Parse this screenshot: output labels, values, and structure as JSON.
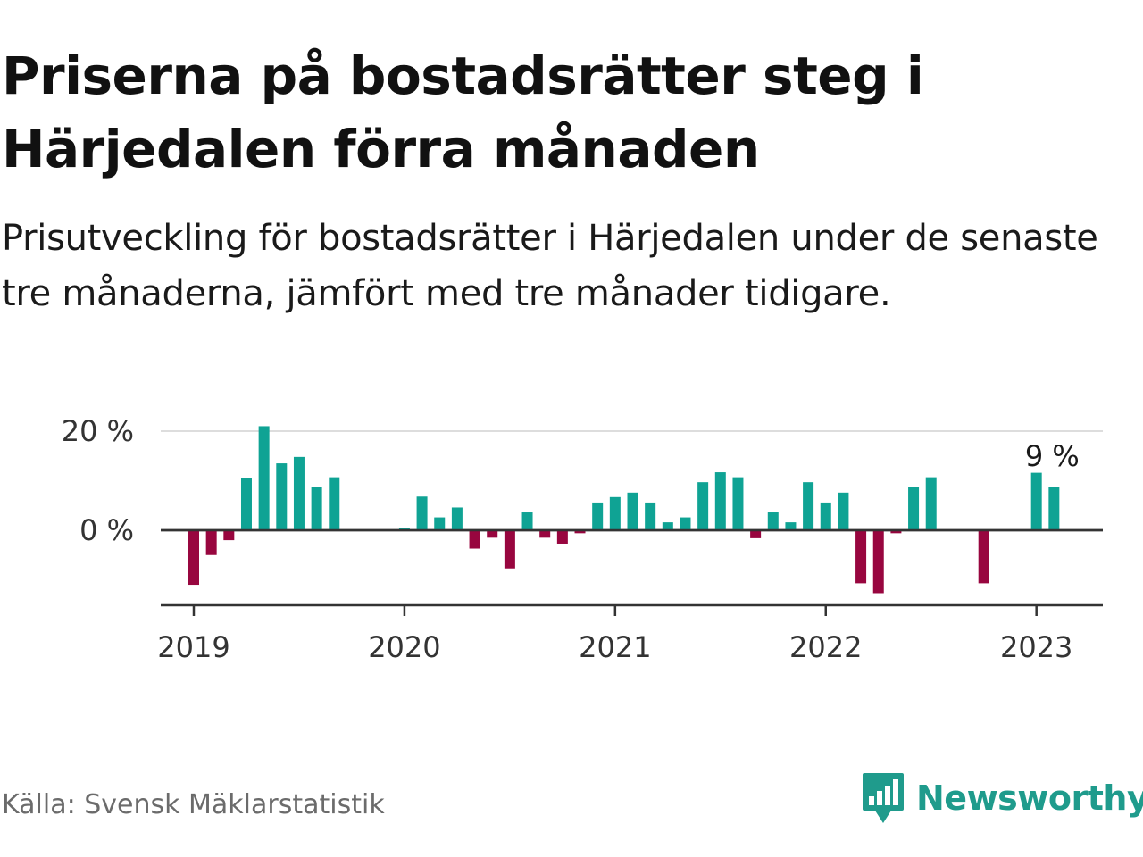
{
  "title": "Priserna på bostadsrätter steg i Härjedalen förra månaden",
  "subtitle": "Prisutveckling för bostadsrätter i Härjedalen under de senaste tre månaderna, jämfört med tre månader tidigare.",
  "source": "Källa: Svensk Mäklarstatistik",
  "brand": {
    "name": "Newsworthy",
    "logo_icon": "newsworthy-bar-chart-icon",
    "color": "#1f9b8c"
  },
  "colors": {
    "positive": "#0fa394",
    "negative": "#98063f",
    "grid": "#dddddd",
    "axis": "#333333"
  },
  "chart_data": {
    "type": "bar",
    "title": "",
    "xlabel": "",
    "ylabel": "",
    "x_ticks": [
      {
        "label": "2019",
        "month": 0
      },
      {
        "label": "2020",
        "month": 12
      },
      {
        "label": "2021",
        "month": 24
      },
      {
        "label": "2022",
        "month": 36
      },
      {
        "label": "2023",
        "month": 48
      }
    ],
    "y_ticks": [
      {
        "label": "20 %",
        "value": 20
      },
      {
        "label": "0 %",
        "value": 0
      }
    ],
    "ylim": [
      -15,
      20
    ],
    "grid": true,
    "annotation": {
      "label": "9 %",
      "month": 49,
      "value": 9
    },
    "series": [
      {
        "values": [
          {
            "month": 0,
            "value": -11
          },
          {
            "month": 1,
            "value": -5
          },
          {
            "month": 2,
            "value": -2
          },
          {
            "month": 3,
            "value": 10.5
          },
          {
            "month": 4,
            "value": 21
          },
          {
            "month": 5,
            "value": 13.5
          },
          {
            "month": 6,
            "value": 14.8
          },
          {
            "month": 7,
            "value": 8.8
          },
          {
            "month": 8,
            "value": 10.7
          },
          {
            "month": 12,
            "value": 0.5
          },
          {
            "month": 13,
            "value": 6.8
          },
          {
            "month": 14,
            "value": 2.6
          },
          {
            "month": 15,
            "value": 4.6
          },
          {
            "month": 16,
            "value": -3.7
          },
          {
            "month": 17,
            "value": -1.5
          },
          {
            "month": 18,
            "value": -7.7
          },
          {
            "month": 19,
            "value": 3.6
          },
          {
            "month": 20,
            "value": -1.5
          },
          {
            "month": 21,
            "value": -2.7
          },
          {
            "month": 22,
            "value": -0.6
          },
          {
            "month": 23,
            "value": 5.6
          },
          {
            "month": 24,
            "value": 6.7
          },
          {
            "month": 25,
            "value": 7.6
          },
          {
            "month": 26,
            "value": 5.6
          },
          {
            "month": 27,
            "value": 1.6
          },
          {
            "month": 28,
            "value": 2.6
          },
          {
            "month": 29,
            "value": 9.7
          },
          {
            "month": 30,
            "value": 11.7
          },
          {
            "month": 31,
            "value": 10.7
          },
          {
            "month": 32,
            "value": -1.6
          },
          {
            "month": 33,
            "value": 3.6
          },
          {
            "month": 34,
            "value": 1.6
          },
          {
            "month": 35,
            "value": 9.7
          },
          {
            "month": 36,
            "value": 5.6
          },
          {
            "month": 37,
            "value": 7.6
          },
          {
            "month": 38,
            "value": -10.7
          },
          {
            "month": 39,
            "value": -12.7
          },
          {
            "month": 40,
            "value": -0.6
          },
          {
            "month": 41,
            "value": 8.7
          },
          {
            "month": 42,
            "value": 10.7
          },
          {
            "month": 45,
            "value": -10.7
          },
          {
            "month": 48,
            "value": 11.6
          },
          {
            "month": 49,
            "value": 8.7
          }
        ]
      }
    ]
  }
}
